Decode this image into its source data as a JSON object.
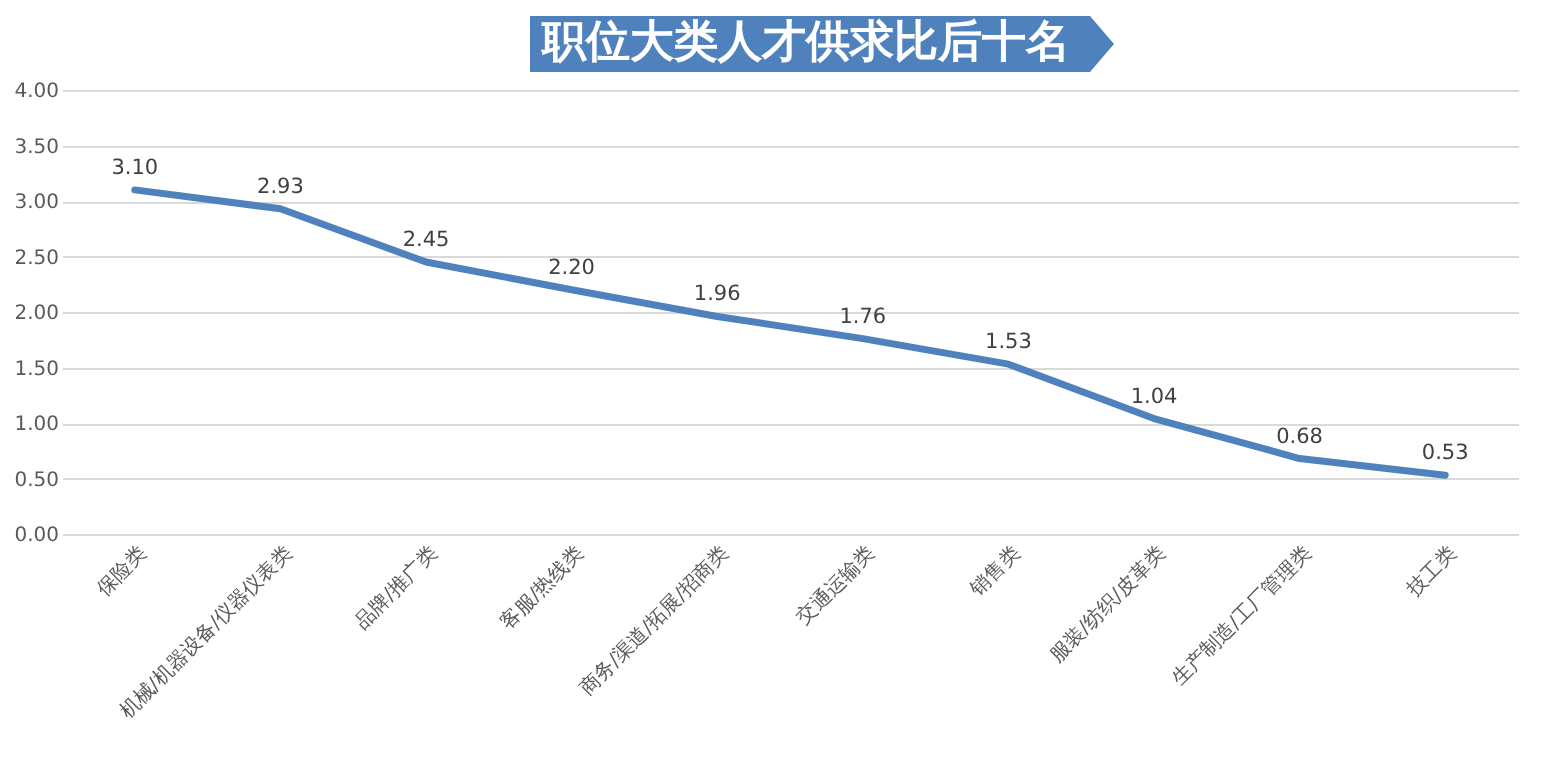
{
  "chart_data": {
    "type": "line",
    "title": "职位大类人才供求比后十名",
    "categories": [
      "保险类",
      "机械/机器设备/仪器仪表类",
      "品牌/推广类",
      "客服/热线类",
      "商务/渠道/拓展/招商类",
      "交通运输类",
      "销售类",
      "服装/纺织/皮革类",
      "生产制造/工厂管理类",
      "技工类"
    ],
    "series": [
      {
        "color": "#4f81bd",
        "values": [
          3.1,
          2.93,
          2.45,
          2.2,
          1.96,
          1.76,
          1.53,
          1.04,
          0.68,
          0.53
        ]
      }
    ],
    "value_labels": [
      "3.10",
      "2.93",
      "2.45",
      "2.20",
      "1.96",
      "1.76",
      "1.53",
      "1.04",
      "0.68",
      "0.53"
    ],
    "ylim": [
      0,
      4
    ],
    "yticks": [
      {
        "value": 0,
        "label": "0.00"
      },
      {
        "value": 0.5,
        "label": "0.50"
      },
      {
        "value": 1,
        "label": "1.00"
      },
      {
        "value": 1.5,
        "label": "1.50"
      },
      {
        "value": 2,
        "label": "2.00"
      },
      {
        "value": 2.5,
        "label": "2.50"
      },
      {
        "value": 3,
        "label": "3.00"
      },
      {
        "value": 3.5,
        "label": "3.50"
      },
      {
        "value": 4,
        "label": "4.00"
      }
    ],
    "grid": "y",
    "marker": "none",
    "line_style": "solid"
  }
}
